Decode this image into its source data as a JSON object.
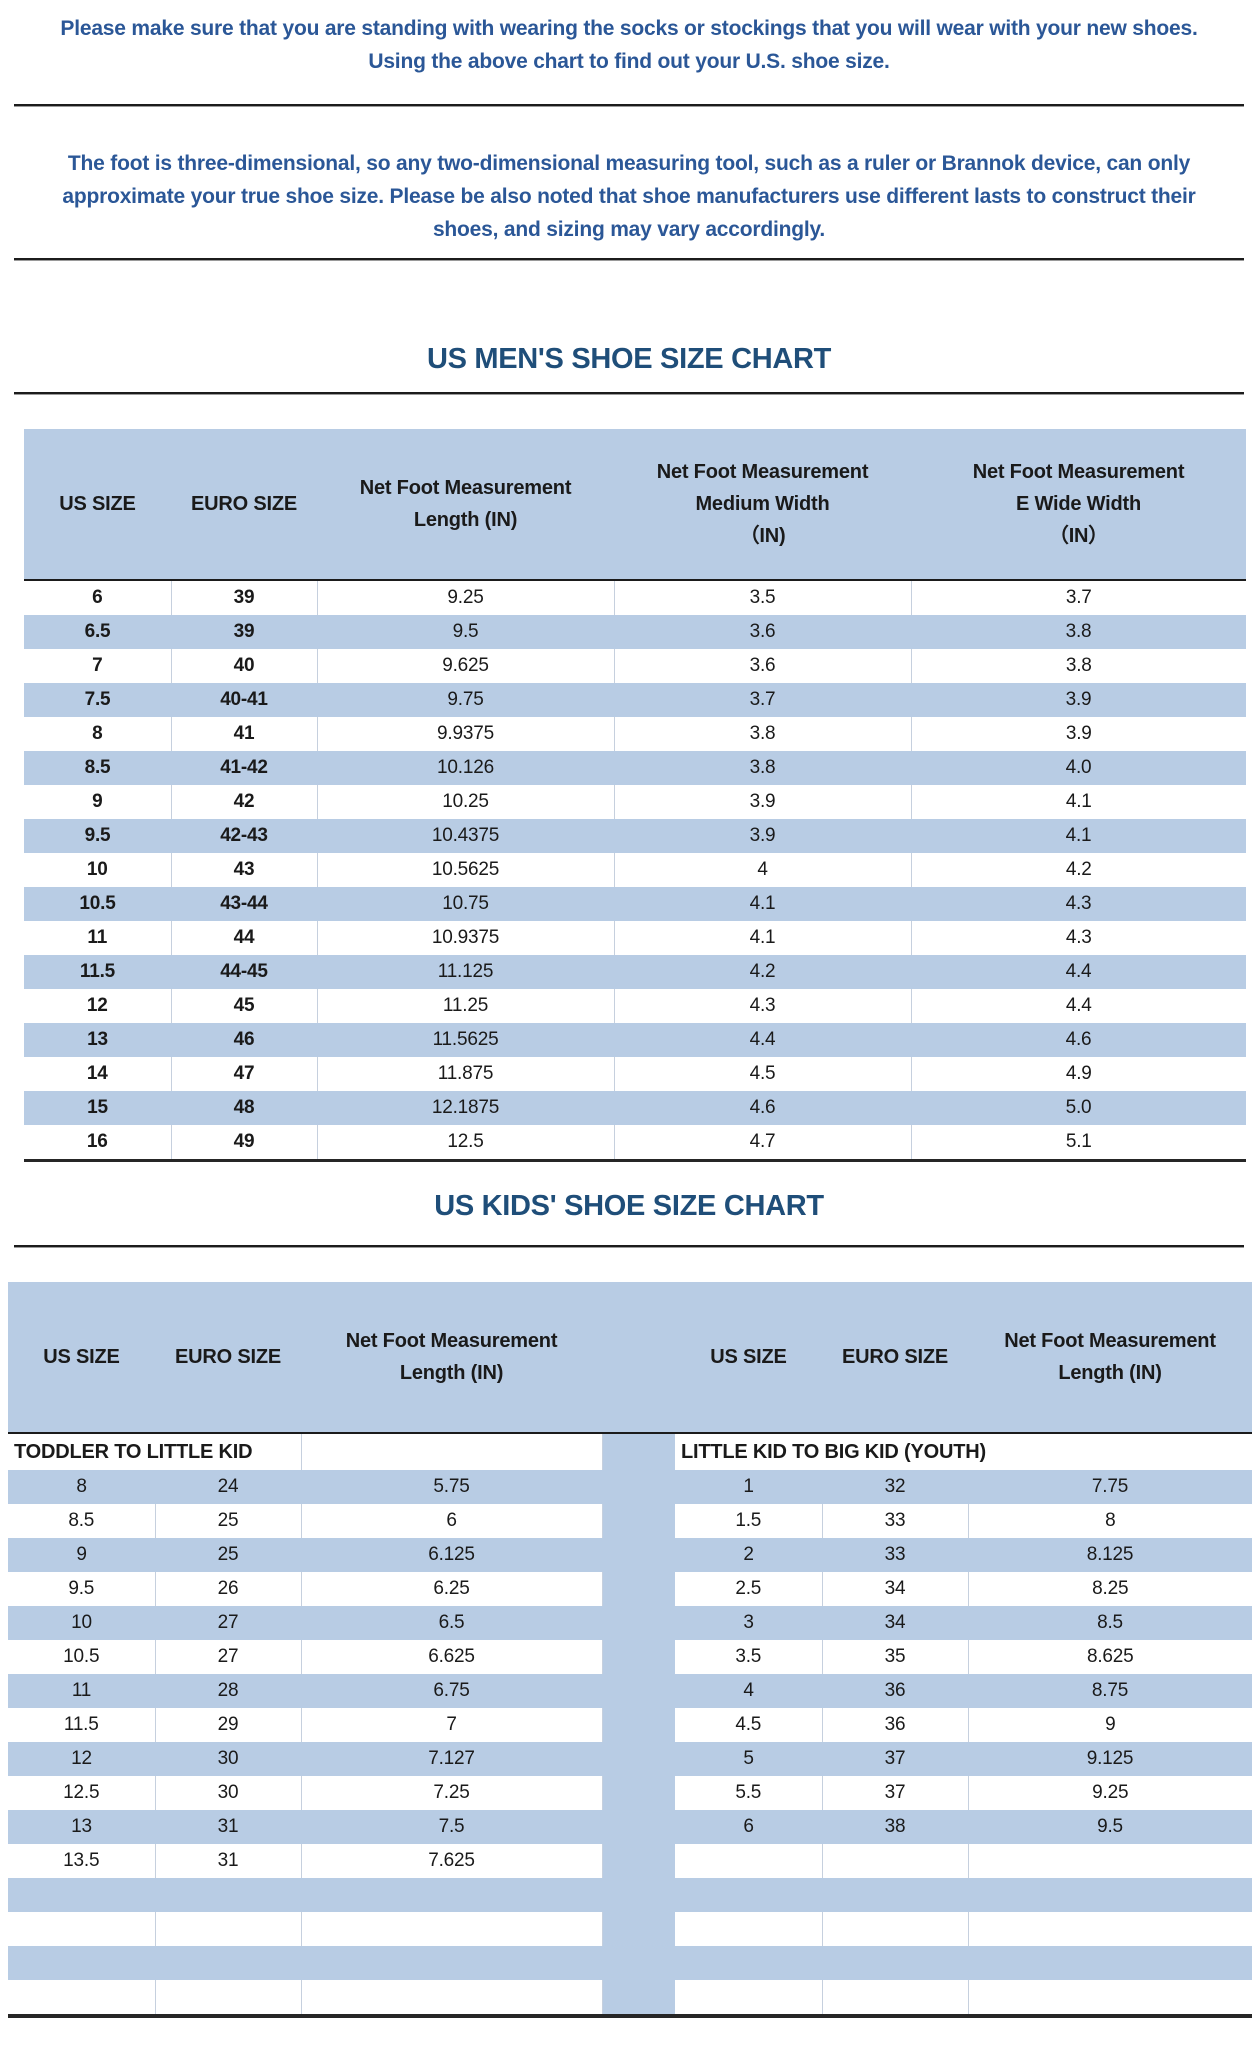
{
  "intro": {
    "line1": "Please make sure that you are standing with wearing the socks or stockings that you will wear with your new shoes.",
    "line2": "Using the above chart to find out your U.S. shoe size.",
    "note": "The foot is three-dimensional, so any two-dimensional measuring tool, such as a ruler or Brannok device, can only approximate your true shoe size. Please be also noted that shoe manufacturers use different lasts to construct their shoes, and sizing may vary accordingly."
  },
  "colors": {
    "band_blue": "#b8cce4",
    "heading_blue": "#1f4e79",
    "text_blue": "#2b5797",
    "dark_rule": "#1c1c1c"
  },
  "mens_chart": {
    "title": "US MEN'S SHOE SIZE CHART",
    "headers": [
      "US SIZE",
      "EURO SIZE",
      "Net Foot Measurement\nLength (IN)",
      "Net Foot Measurement\nMedium Width\n（IN)",
      "Net Foot Measurement\nE Wide Width\n（IN）"
    ],
    "rows": [
      [
        "6",
        "39",
        "9.25",
        "3.5",
        "3.7"
      ],
      [
        "6.5",
        "39",
        "9.5",
        "3.6",
        "3.8"
      ],
      [
        "7",
        "40",
        "9.625",
        "3.6",
        "3.8"
      ],
      [
        "7.5",
        "40-41",
        "9.75",
        "3.7",
        "3.9"
      ],
      [
        "8",
        "41",
        "9.9375",
        "3.8",
        "3.9"
      ],
      [
        "8.5",
        "41-42",
        "10.126",
        "3.8",
        "4.0"
      ],
      [
        "9",
        "42",
        "10.25",
        "3.9",
        "4.1"
      ],
      [
        "9.5",
        "42-43",
        "10.4375",
        "3.9",
        "4.1"
      ],
      [
        "10",
        "43",
        "10.5625",
        "4",
        "4.2"
      ],
      [
        "10.5",
        "43-44",
        "10.75",
        "4.1",
        "4.3"
      ],
      [
        "11",
        "44",
        "10.9375",
        "4.1",
        "4.3"
      ],
      [
        "11.5",
        "44-45",
        "11.125",
        "4.2",
        "4.4"
      ],
      [
        "12",
        "45",
        "11.25",
        "4.3",
        "4.4"
      ],
      [
        "13",
        "46",
        "11.5625",
        "4.4",
        "4.6"
      ],
      [
        "14",
        "47",
        "11.875",
        "4.5",
        "4.9"
      ],
      [
        "15",
        "48",
        "12.1875",
        "4.6",
        "5.0"
      ],
      [
        "16",
        "49",
        "12.5",
        "4.7",
        "5.1"
      ]
    ]
  },
  "kids_chart": {
    "title": "US KIDS' SHOE SIZE CHART",
    "headers": [
      "US SIZE",
      "EURO SIZE",
      "Net Foot Measurement\nLength (IN)",
      "US SIZE",
      "EURO SIZE",
      "Net Foot Measurement\nLength (IN)"
    ],
    "left_section_label": "TODDLER TO LITTLE KID",
    "right_section_label": "LITTLE KID TO BIG KID (YOUTH)",
    "rows": [
      [
        "8",
        "24",
        "5.75",
        "1",
        "32",
        "7.75"
      ],
      [
        "8.5",
        "25",
        "6",
        "1.5",
        "33",
        "8"
      ],
      [
        "9",
        "25",
        "6.125",
        "2",
        "33",
        "8.125"
      ],
      [
        "9.5",
        "26",
        "6.25",
        "2.5",
        "34",
        "8.25"
      ],
      [
        "10",
        "27",
        "6.5",
        "3",
        "34",
        "8.5"
      ],
      [
        "10.5",
        "27",
        "6.625",
        "3.5",
        "35",
        "8.625"
      ],
      [
        "11",
        "28",
        "6.75",
        "4",
        "36",
        "8.75"
      ],
      [
        "11.5",
        "29",
        "7",
        "4.5",
        "36",
        "9"
      ],
      [
        "12",
        "30",
        "7.127",
        "5",
        "37",
        "9.125"
      ],
      [
        "12.5",
        "30",
        "7.25",
        "5.5",
        "37",
        "9.25"
      ],
      [
        "13",
        "31",
        "7.5",
        "6",
        "38",
        "9.5"
      ],
      [
        "13.5",
        "31",
        "7.625",
        "",
        "",
        ""
      ],
      [
        "",
        "",
        "",
        "",
        "",
        ""
      ],
      [
        "",
        "",
        "",
        "",
        "",
        ""
      ],
      [
        "",
        "",
        "",
        "",
        "",
        ""
      ],
      [
        "",
        "",
        "",
        "",
        "",
        ""
      ]
    ]
  }
}
